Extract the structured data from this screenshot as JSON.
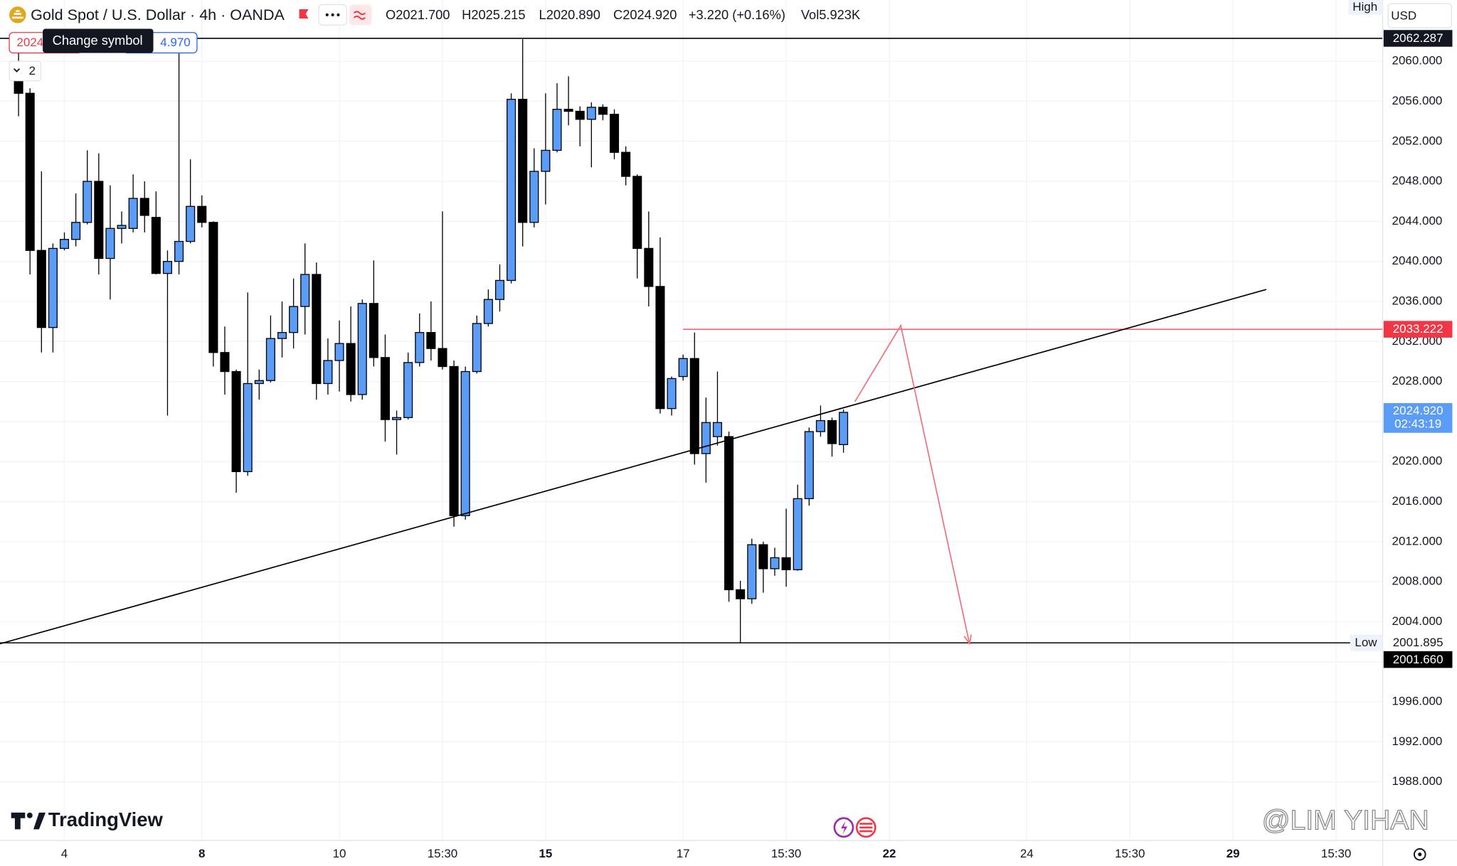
{
  "header": {
    "symbol": "Gold Spot / U.S. Dollar · 4h · OANDA",
    "ohlc": [
      "O2021.700",
      "H2025.215",
      "L2020.890",
      "C2024.920",
      "+3.220 (+0.16%)",
      "Vol5.923K"
    ],
    "tooltip": "Change symbol",
    "sell_price": "2024",
    "buy_price": "4.970",
    "layout_count": "2",
    "currency": "USD",
    "brand": "TradingView",
    "watermark": "@LIM YIHAN"
  },
  "chart_data": {
    "type": "candlestick",
    "up_color": "#5b9cf6",
    "down_color": "#000000",
    "grid": true,
    "xlim": [
      -1.62,
      119.06
    ],
    "ylim": [
      1982.15,
      2066.12
    ],
    "xticks": [
      {
        "value": 4,
        "label": "4"
      },
      {
        "value": 16,
        "label": "8",
        "bold": true
      },
      {
        "value": 28,
        "label": "10"
      },
      {
        "value": 37,
        "label": "15:30"
      },
      {
        "value": 46,
        "label": "15",
        "bold": true
      },
      {
        "value": 58,
        "label": "17"
      },
      {
        "value": 67,
        "label": "15:30"
      },
      {
        "value": 76,
        "label": "22",
        "bold": true
      },
      {
        "value": 88,
        "label": "24"
      },
      {
        "value": 97,
        "label": "15:30"
      },
      {
        "value": 106,
        "label": "29",
        "bold": true
      },
      {
        "value": 115,
        "label": "15:30"
      }
    ],
    "yticks": [
      {
        "value": 1988,
        "label": "1988.000"
      },
      {
        "value": 1992,
        "label": "1992.000"
      },
      {
        "value": 1996,
        "label": "1996.000"
      },
      {
        "value": 2000,
        "label": "2000.000"
      },
      {
        "value": 2004,
        "label": "2004.000"
      },
      {
        "value": 2008,
        "label": "2008.000"
      },
      {
        "value": 2012,
        "label": "2012.000"
      },
      {
        "value": 2016,
        "label": "2016.000"
      },
      {
        "value": 2020,
        "label": "2020.000"
      },
      {
        "value": 2024,
        "label": "2024.000"
      },
      {
        "value": 2028,
        "label": "2028.000"
      },
      {
        "value": 2032,
        "label": "2032.000"
      },
      {
        "value": 2036,
        "label": "2036.000"
      },
      {
        "value": 2040,
        "label": "2040.000"
      },
      {
        "value": 2044,
        "label": "2044.000"
      },
      {
        "value": 2048,
        "label": "2048.000"
      },
      {
        "value": 2052,
        "label": "2052.000"
      },
      {
        "value": 2056,
        "label": "2056.000"
      },
      {
        "value": 2060,
        "label": "2060.000"
      }
    ],
    "open": [
      2058.2,
      2056.8,
      2041.1,
      2033.4,
      2041.3,
      2042.2,
      2043.9,
      2048.0,
      2040.3,
      2043.3,
      2043.3,
      2046.3,
      2044.4,
      2038.8,
      2040.0,
      2042.0,
      2045.5,
      2043.9,
      2030.9,
      2029.0,
      2019.0,
      2027.8,
      2028.1,
      2032.3,
      2032.9,
      2035.5,
      2038.7,
      2027.8,
      2030.1,
      2031.8,
      2026.7,
      2035.8,
      2030.4,
      2024.2,
      2024.4,
      2029.9,
      2032.9,
      2031.3,
      2029.5,
      2014.6,
      2029.0,
      2033.8,
      2036.2,
      2038.1,
      2056.2,
      2043.9,
      2049.0,
      2051.1,
      2055.2,
      2055.0,
      2054.2,
      2055.4,
      2054.7,
      2050.9,
      2048.5,
      2041.3,
      2037.5,
      2025.3,
      2028.5,
      2030.3,
      2020.8,
      2022.5,
      2022.5,
      2007.2,
      2006.3,
      2011.7,
      2009.3,
      2010.4,
      2009.2,
      2016.3,
      2023.0,
      2024.1,
      2021.7
    ],
    "high": [
      2061.0,
      2057.3,
      2049.0,
      2041.8,
      2042.9,
      2046.8,
      2051.1,
      2050.8,
      2047.6,
      2045.0,
      2048.7,
      2048.0,
      2047.0,
      2041.1,
      2062.4,
      2050.2,
      2046.6,
      2044.0,
      2033.5,
      2029.2,
      2036.9,
      2029.2,
      2034.6,
      2036.0,
      2038.3,
      2041.8,
      2039.9,
      2032.3,
      2034.1,
      2035.5,
      2036.2,
      2040.1,
      2032.7,
      2025.1,
      2030.9,
      2034.8,
      2036.0,
      2045.0,
      2030.1,
      2029.5,
      2034.6,
      2037.2,
      2039.7,
      2056.8,
      2062.2,
      2051.3,
      2056.8,
      2057.8,
      2058.5,
      2055.5,
      2055.9,
      2055.7,
      2055.2,
      2051.5,
      2048.7,
      2045.0,
      2042.4,
      2028.5,
      2030.7,
      2032.9,
      2026.4,
      2029.0,
      2023.0,
      2008.1,
      2012.3,
      2012.0,
      2011.4,
      2015.3,
      2017.7,
      2023.4,
      2025.6,
      2024.4,
      2025.215
    ],
    "low": [
      2054.5,
      2038.7,
      2030.9,
      2030.9,
      2041.1,
      2041.5,
      2043.7,
      2038.7,
      2036.2,
      2041.8,
      2042.9,
      2042.9,
      2038.7,
      2024.6,
      2038.7,
      2041.8,
      2043.4,
      2029.5,
      2026.7,
      2016.9,
      2018.6,
      2026.2,
      2027.9,
      2030.4,
      2031.3,
      2032.7,
      2026.2,
      2026.7,
      2027.0,
      2026.0,
      2026.2,
      2029.5,
      2022.0,
      2020.7,
      2024.2,
      2029.5,
      2030.1,
      2029.2,
      2013.5,
      2014.2,
      2028.8,
      2033.5,
      2035.0,
      2037.8,
      2041.5,
      2043.4,
      2045.7,
      2050.9,
      2053.6,
      2051.5,
      2049.4,
      2054.1,
      2050.2,
      2047.6,
      2038.3,
      2035.5,
      2024.8,
      2024.6,
      2028.1,
      2019.7,
      2017.9,
      2021.6,
      2006.0,
      2001.9,
      2005.8,
      2006.9,
      2008.6,
      2007.5,
      2009.1,
      2015.6,
      2022.5,
      2020.5,
      2020.89
    ],
    "close": [
      2056.8,
      2041.1,
      2033.4,
      2041.3,
      2042.2,
      2043.9,
      2048.0,
      2040.3,
      2043.3,
      2043.6,
      2046.3,
      2044.6,
      2038.8,
      2040.0,
      2042.0,
      2045.5,
      2043.9,
      2030.9,
      2029.0,
      2019.0,
      2027.8,
      2028.1,
      2032.3,
      2032.9,
      2035.5,
      2038.7,
      2027.8,
      2030.1,
      2031.8,
      2026.7,
      2035.8,
      2030.4,
      2024.2,
      2024.4,
      2029.9,
      2032.9,
      2031.3,
      2029.5,
      2014.6,
      2029.0,
      2033.8,
      2036.2,
      2038.1,
      2056.2,
      2043.9,
      2049.0,
      2051.1,
      2055.2,
      2055.0,
      2054.2,
      2055.4,
      2054.7,
      2050.9,
      2048.5,
      2041.3,
      2037.5,
      2025.3,
      2028.3,
      2030.3,
      2020.8,
      2023.9,
      2023.9,
      2007.2,
      2006.3,
      2011.7,
      2009.3,
      2010.4,
      2009.2,
      2016.3,
      2023.0,
      2024.1,
      2021.8,
      2024.92
    ],
    "high_line": 2062.287,
    "high_label": "High",
    "low_line": 2001.895,
    "low_label": "Low",
    "bid_price": {
      "value": 2001.66,
      "label": "2001.660"
    },
    "target_line": {
      "value": 2033.222,
      "from_x": 58,
      "color": "#f23645"
    },
    "last_price": {
      "value": 2024.92,
      "label": "2024.920"
    },
    "countdown": "02:43:19",
    "last_color": "#5b9cf6",
    "drawings": [
      {
        "type": "trendline",
        "color": "#000000",
        "x": [
          -1.62,
          108.9
        ],
        "y": [
          2001.8,
          2037.2
        ]
      },
      {
        "type": "arrow",
        "color": "#f0707a",
        "x": [
          73,
          77,
          83
        ],
        "y": [
          2026.0,
          2033.6,
          2001.8
        ]
      }
    ]
  }
}
